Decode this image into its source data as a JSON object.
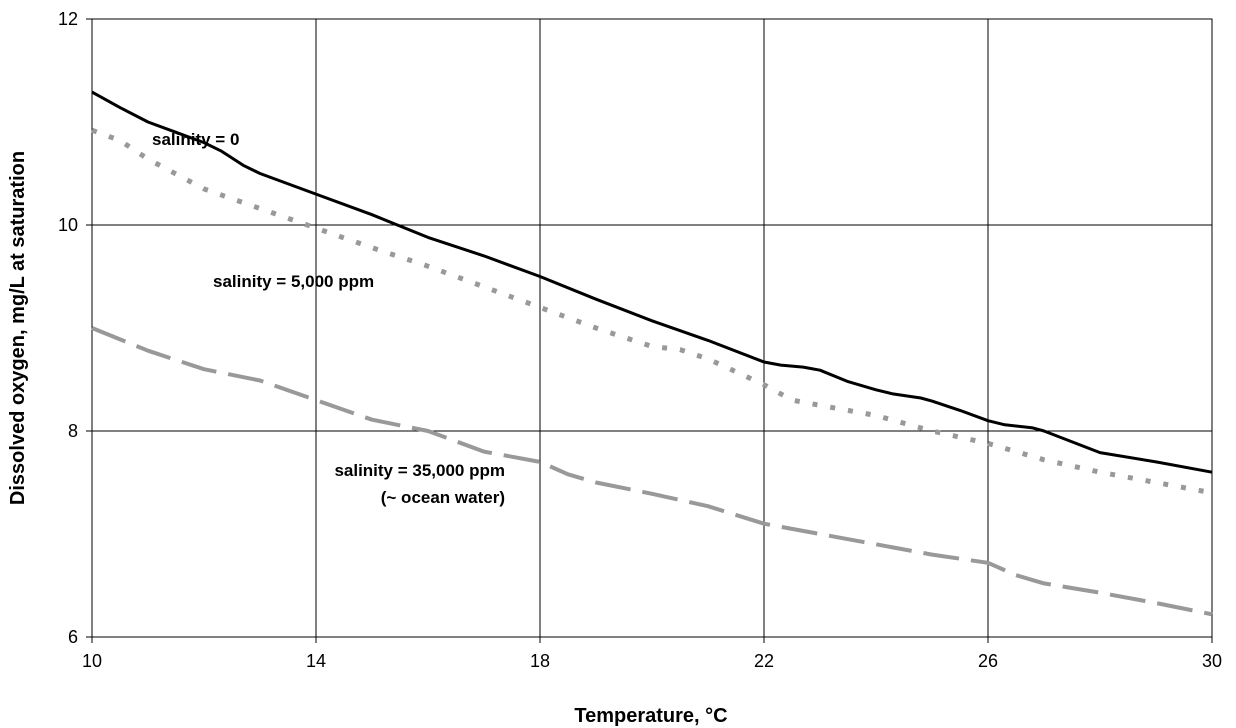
{
  "chart_data": {
    "type": "line",
    "title": "",
    "xlabel": "Temperature, °C",
    "ylabel": "Dissolved oxygen, mg/L at saturation",
    "xlim": [
      10,
      30
    ],
    "ylim": [
      6,
      12
    ],
    "x_ticks": [
      10,
      14,
      18,
      22,
      26,
      30
    ],
    "y_ticks": [
      6,
      8,
      10,
      12
    ],
    "grid": true,
    "legend": "none",
    "annotations": [
      {
        "text": "salinity = 0"
      },
      {
        "text": "salinity = 5,000 ppm"
      },
      {
        "text": "salinity = 35,000 ppm"
      },
      {
        "text": "(~ ocean water)"
      }
    ],
    "series": [
      {
        "label_ref": "salinity = 0",
        "color": "#000000",
        "style": "solid",
        "x": [
          10,
          10.5,
          11,
          11.5,
          12,
          12.3,
          12.7,
          13,
          14,
          15,
          16,
          17,
          18,
          19,
          20,
          21,
          22,
          22.3,
          22.7,
          23,
          23.5,
          24,
          24.3,
          24.8,
          25,
          25.5,
          26,
          26.3,
          26.8,
          27,
          28,
          29,
          30
        ],
        "y": [
          11.29,
          11.14,
          11.0,
          10.9,
          10.8,
          10.72,
          10.58,
          10.5,
          10.3,
          10.1,
          9.88,
          9.7,
          9.5,
          9.28,
          9.07,
          8.88,
          8.67,
          8.64,
          8.62,
          8.59,
          8.48,
          8.4,
          8.36,
          8.32,
          8.29,
          8.2,
          8.1,
          8.06,
          8.03,
          8.0,
          7.79,
          7.7,
          7.6
        ]
      },
      {
        "label_ref": "salinity = 5,000 ppm",
        "color": "#999999",
        "style": "dotted",
        "x": [
          10,
          10.5,
          11,
          12,
          13,
          14,
          15,
          16,
          17,
          18,
          19,
          20,
          20.5,
          21,
          22,
          22.5,
          23,
          24,
          25,
          26,
          27,
          28,
          29,
          30
        ],
        "y": [
          10.92,
          10.82,
          10.64,
          10.35,
          10.16,
          9.97,
          9.78,
          9.6,
          9.4,
          9.2,
          9.0,
          8.82,
          8.79,
          8.7,
          8.45,
          8.3,
          8.25,
          8.15,
          8.0,
          7.88,
          7.72,
          7.6,
          7.5,
          7.4
        ]
      },
      {
        "label_ref": "salinity = 35,000 ppm",
        "color": "#999999",
        "style": "dashed",
        "x": [
          10,
          11,
          12,
          13,
          14,
          15,
          16,
          16.5,
          17,
          18,
          18.5,
          19,
          20,
          21,
          22,
          23,
          24,
          25,
          26,
          26.5,
          27,
          28,
          29,
          30
        ],
        "y": [
          9.0,
          8.78,
          8.6,
          8.49,
          8.3,
          8.11,
          8.0,
          7.9,
          7.8,
          7.7,
          7.58,
          7.5,
          7.39,
          7.27,
          7.1,
          7.0,
          6.9,
          6.8,
          6.72,
          6.6,
          6.52,
          6.43,
          6.33,
          6.22
        ]
      }
    ]
  }
}
